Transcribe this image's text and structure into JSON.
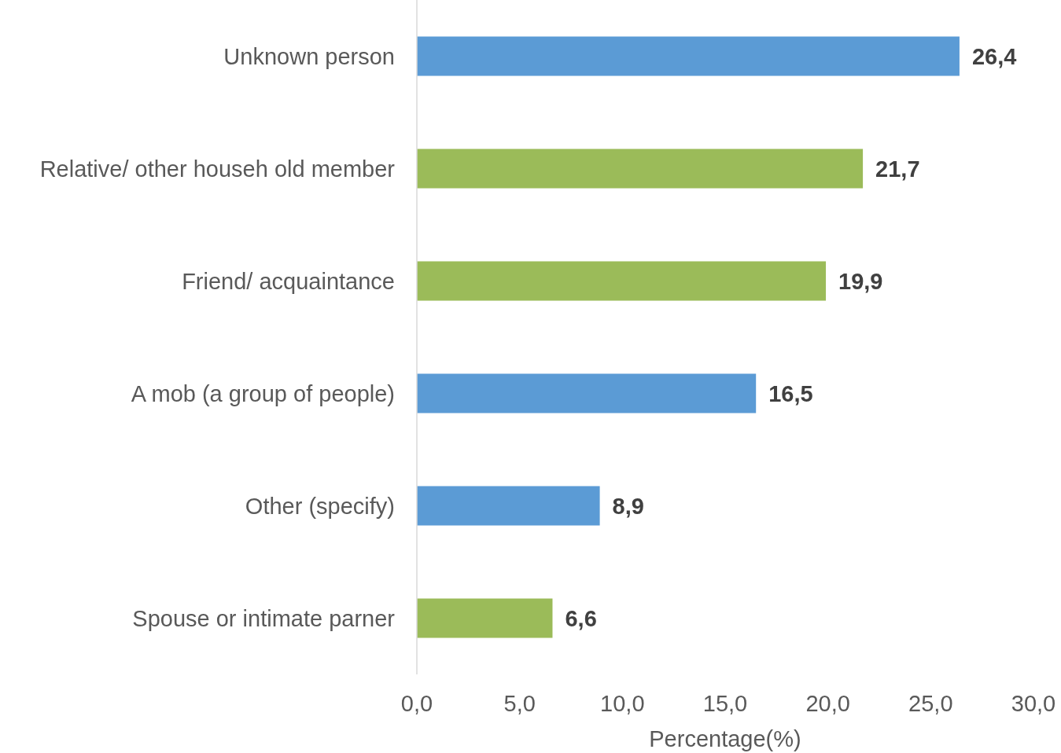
{
  "chart_data": {
    "type": "bar",
    "orientation": "horizontal",
    "xlabel": "Percentage(%)",
    "categories": [
      "Unknown person",
      "Relative/ other househ old member",
      "Friend/ acquaintance",
      "A mob (a group of people)",
      "Other (specify)",
      "Spouse or intimate parner"
    ],
    "values": [
      26.4,
      21.7,
      19.9,
      16.5,
      8.9,
      6.6
    ],
    "colors": [
      "#5b9bd5",
      "#9bbb59",
      "#9bbb59",
      "#5b9bd5",
      "#5b9bd5",
      "#9bbb59"
    ],
    "value_labels": [
      "26,4",
      "21,7",
      "19,9",
      "16,5",
      "8,9",
      "6,6"
    ],
    "xlim": [
      0,
      30
    ],
    "xticks": [
      {
        "value": 0,
        "label": "0,0"
      },
      {
        "value": 5,
        "label": "5,0"
      },
      {
        "value": 10,
        "label": "10,0"
      },
      {
        "value": 15,
        "label": "15,0"
      },
      {
        "value": 20,
        "label": "20,0"
      },
      {
        "value": 25,
        "label": "25,0"
      },
      {
        "value": 30,
        "label": "30,0"
      }
    ],
    "grid": false
  }
}
